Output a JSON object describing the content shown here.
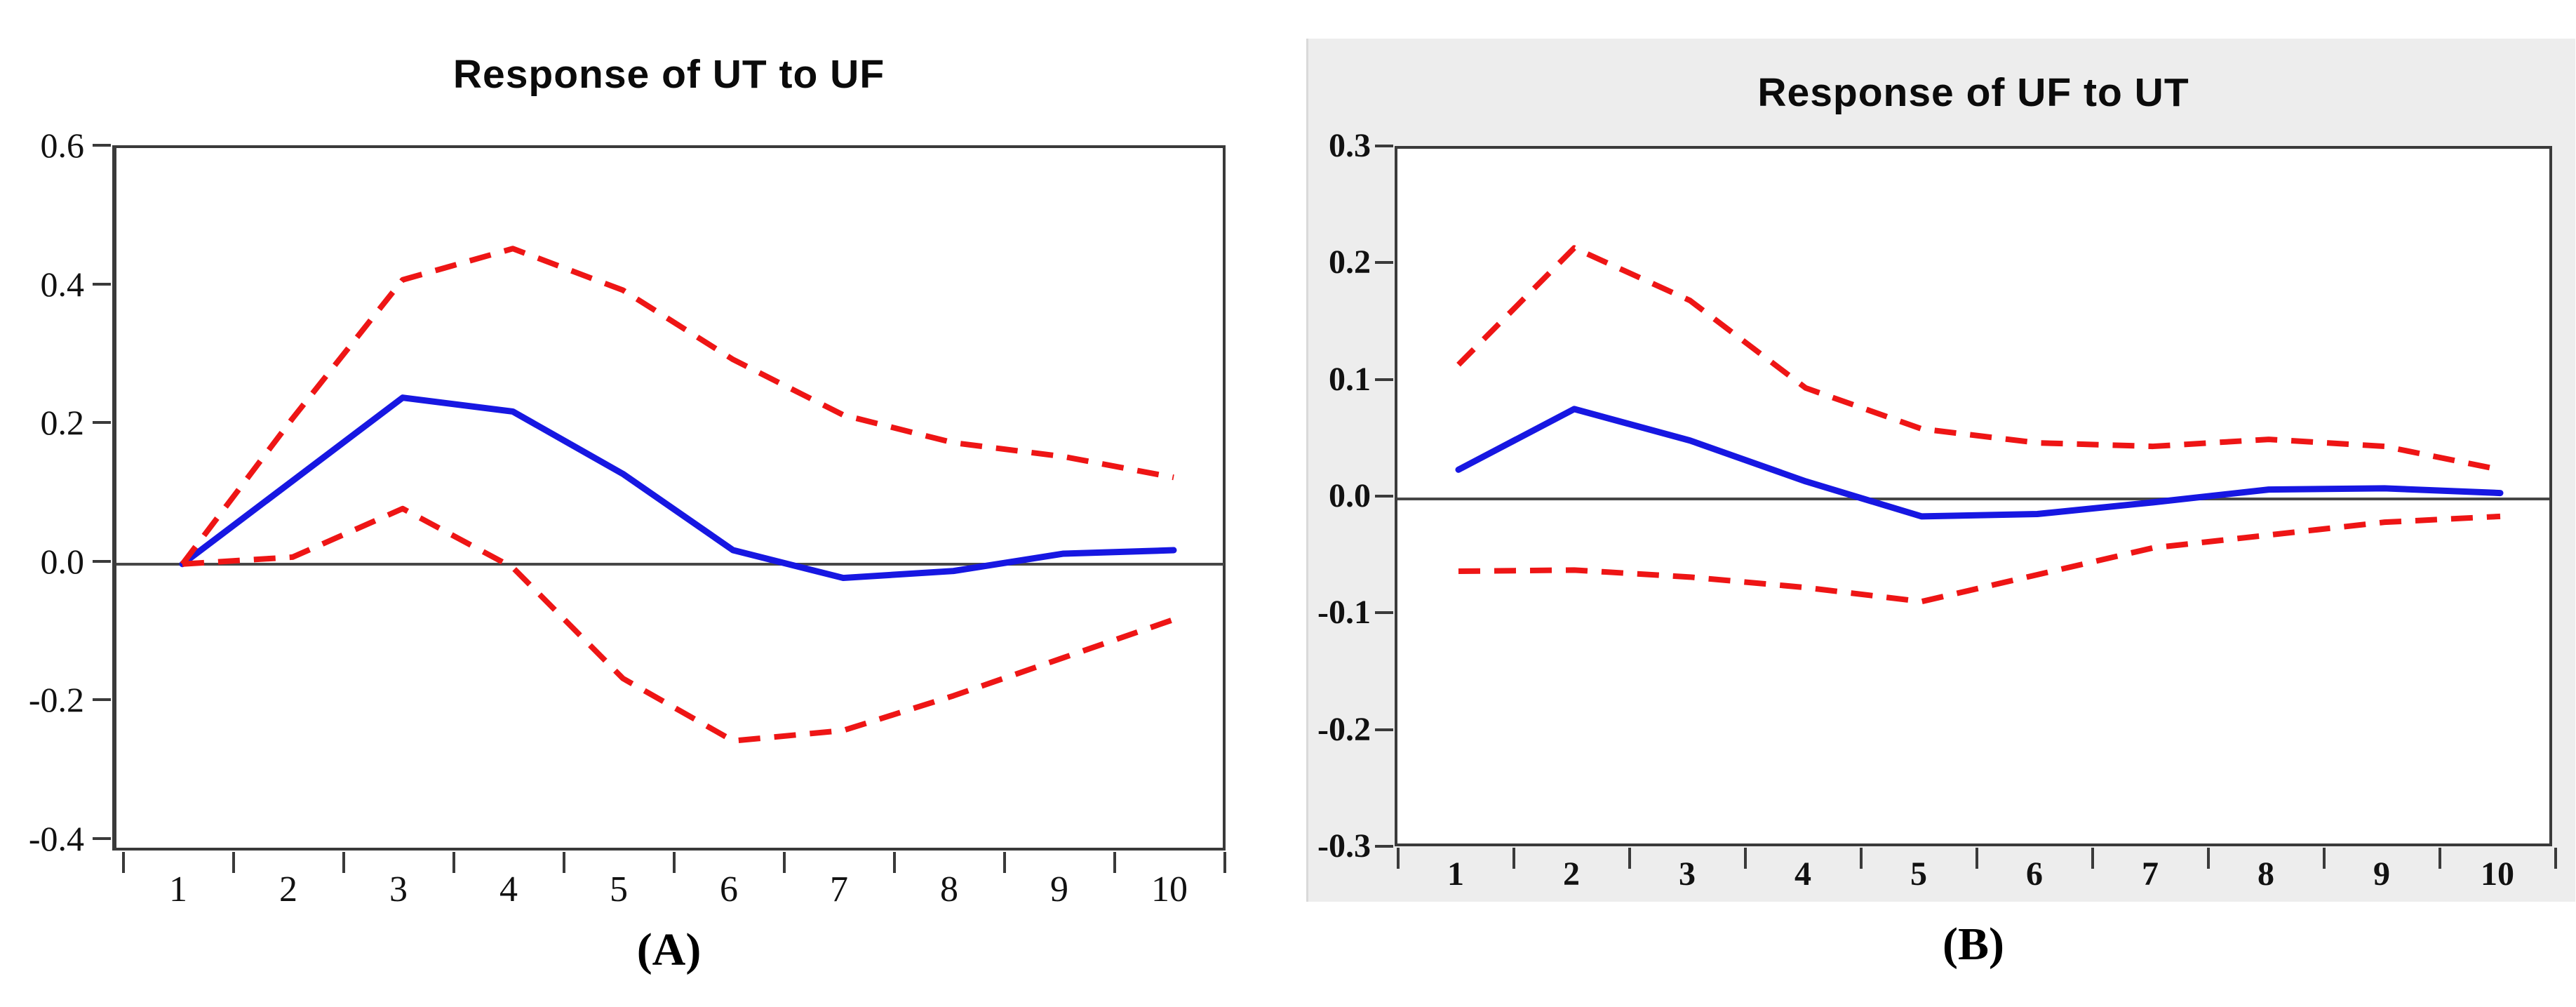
{
  "figure": {
    "type": "impulse-response-pair",
    "background": "#ffffff",
    "panel_b_background": "#ededed"
  },
  "colors": {
    "response_line": "#1717e2",
    "confidence_band": "#ee1515",
    "axis": "#3a3a3a",
    "zero_line": "#474747",
    "text": "#111111"
  },
  "chart_data": [
    {
      "type": "line",
      "title": "Response of UT to UF",
      "caption": "(A)",
      "xlabel": "",
      "ylabel": "",
      "x": [
        1,
        2,
        3,
        4,
        5,
        6,
        7,
        8,
        9,
        10
      ],
      "xticks": [
        "1",
        "2",
        "3",
        "4",
        "5",
        "6",
        "7",
        "8",
        "9",
        "10"
      ],
      "yticks": [
        "0.6",
        "0.4",
        "0.2",
        "0.0",
        "-0.2",
        "-0.4"
      ],
      "ytick_values": [
        0.6,
        0.4,
        0.2,
        0.0,
        -0.2,
        -0.4
      ],
      "ylim": [
        -0.417,
        0.6
      ],
      "xlim": [
        1,
        10
      ],
      "zero_line": 0.0,
      "grid": false,
      "legend": "none",
      "series": [
        {
          "name": "response",
          "style": "solid",
          "color": "#1717e2",
          "values": [
            0.0,
            0.12,
            0.24,
            0.22,
            0.13,
            0.02,
            -0.02,
            -0.01,
            0.015,
            0.02
          ]
        },
        {
          "name": "upper_confidence_band",
          "style": "dashed",
          "color": "#ee1515",
          "values": [
            0.0,
            0.21,
            0.41,
            0.455,
            0.395,
            0.295,
            0.215,
            0.175,
            0.155,
            0.125
          ]
        },
        {
          "name": "lower_confidence_band",
          "style": "dashed",
          "color": "#ee1515",
          "values": [
            0.0,
            0.01,
            0.08,
            -0.005,
            -0.165,
            -0.255,
            -0.24,
            -0.19,
            -0.135,
            -0.08
          ]
        }
      ]
    },
    {
      "type": "line",
      "title": "Response of UF to UT",
      "caption": "(B)",
      "xlabel": "",
      "ylabel": "",
      "x": [
        1,
        2,
        3,
        4,
        5,
        6,
        7,
        8,
        9,
        10
      ],
      "xticks": [
        "1",
        "2",
        "3",
        "4",
        "5",
        "6",
        "7",
        "8",
        "9",
        "10"
      ],
      "yticks": [
        "0.3",
        "0.2",
        "0.1",
        "0.0",
        "-0.1",
        "-0.2",
        "-0.3"
      ],
      "ytick_values": [
        0.3,
        0.2,
        0.1,
        0.0,
        -0.1,
        -0.2,
        -0.3
      ],
      "ylim": [
        -0.3,
        0.3
      ],
      "xlim": [
        1,
        10
      ],
      "zero_line": 0.0,
      "grid": false,
      "legend": "none",
      "series": [
        {
          "name": "response",
          "style": "solid",
          "color": "#1717e2",
          "values": [
            0.025,
            0.077,
            0.05,
            0.015,
            -0.015,
            -0.013,
            -0.003,
            0.008,
            0.009,
            0.005
          ]
        },
        {
          "name": "upper_confidence_band",
          "style": "dashed",
          "color": "#ee1515",
          "values": [
            0.115,
            0.215,
            0.17,
            0.095,
            0.06,
            0.048,
            0.045,
            0.051,
            0.045,
            0.025
          ]
        },
        {
          "name": "lower_confidence_band",
          "style": "dashed",
          "color": "#ee1515",
          "values": [
            -0.062,
            -0.061,
            -0.067,
            -0.076,
            -0.088,
            -0.065,
            -0.042,
            -0.031,
            -0.02,
            -0.015
          ]
        }
      ]
    }
  ]
}
